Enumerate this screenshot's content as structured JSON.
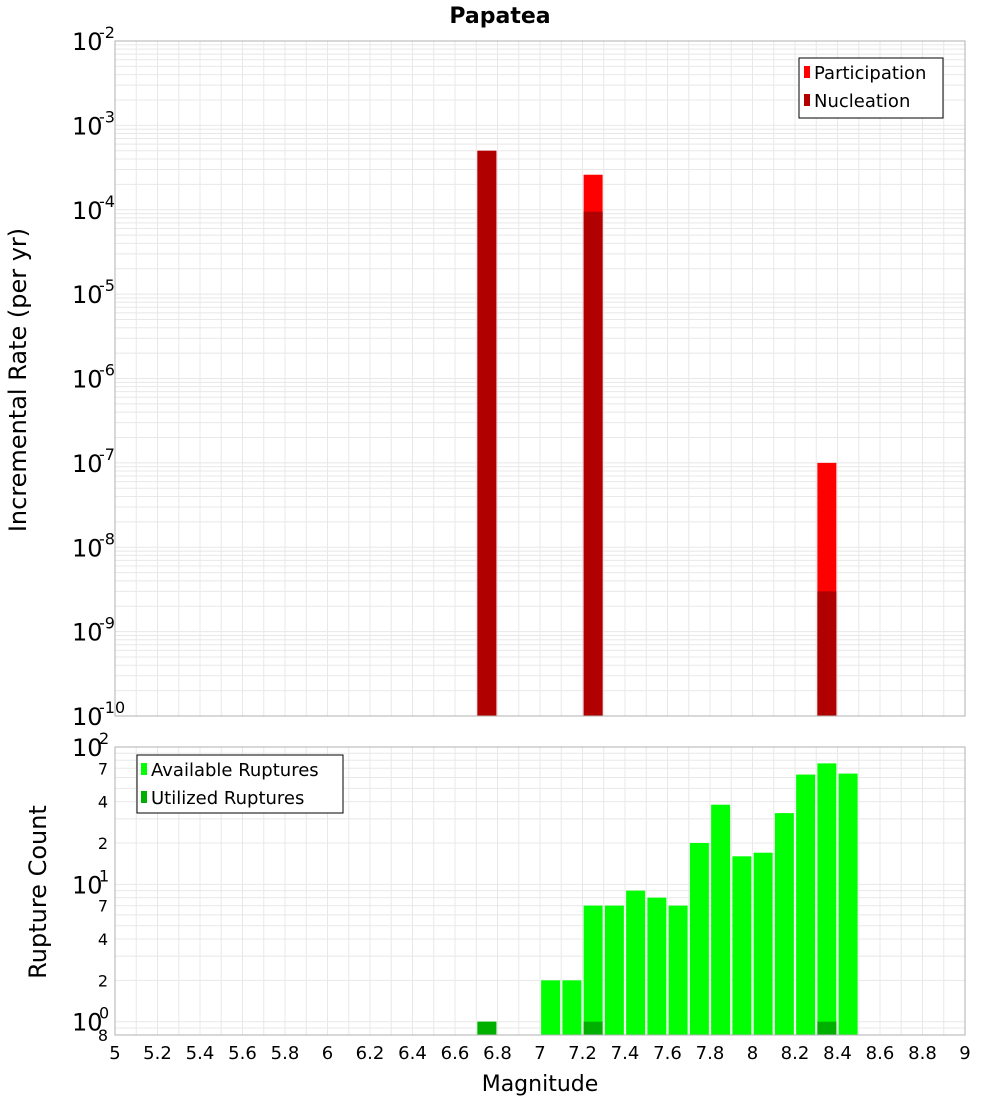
{
  "colors": {
    "participation": "#ff0000",
    "nucleation": "#b00000",
    "available": "#00ff00",
    "utilized": "#00b000",
    "grid": "#e8e8e8",
    "frame": "#b0b0b0"
  },
  "chart_data": [
    {
      "type": "bar",
      "title": "Papatea",
      "xlabel": "",
      "ylabel": "Incremental Rate (per yr)",
      "yscale": "log",
      "ylim": [
        1e-10,
        0.01
      ],
      "xlim": [
        5,
        9
      ],
      "grid": true,
      "legend_position": "top-right",
      "series": [
        {
          "name": "Participation",
          "color": "#ff0000",
          "x": [
            6.75,
            7.25,
            8.35
          ],
          "values": [
            0.0005,
            0.00026,
            1e-07
          ]
        },
        {
          "name": "Nucleation",
          "color": "#b00000",
          "x": [
            6.75,
            7.25,
            8.35
          ],
          "values": [
            0.0005,
            9.5e-05,
            3e-09
          ]
        }
      ],
      "y_major_ticks": [
        {
          "base": "10",
          "exp": "-10"
        },
        {
          "base": "10",
          "exp": "-9"
        },
        {
          "base": "10",
          "exp": "-8"
        },
        {
          "base": "10",
          "exp": "-7"
        },
        {
          "base": "10",
          "exp": "-6"
        },
        {
          "base": "10",
          "exp": "-5"
        },
        {
          "base": "10",
          "exp": "-4"
        },
        {
          "base": "10",
          "exp": "-3"
        },
        {
          "base": "10",
          "exp": "-2"
        }
      ]
    },
    {
      "type": "bar",
      "xlabel": "Magnitude",
      "ylabel": "Rupture Count",
      "yscale": "log",
      "ylim": [
        0.8,
        100
      ],
      "xlim": [
        5,
        9
      ],
      "grid": true,
      "legend_position": "top-left",
      "series": [
        {
          "name": "Available Ruptures",
          "color": "#00ff00",
          "x": [
            6.75,
            7.05,
            7.15,
            7.25,
            7.35,
            7.45,
            7.55,
            7.65,
            7.75,
            7.85,
            7.95,
            8.05,
            8.15,
            8.25,
            8.35,
            8.45
          ],
          "values": [
            1,
            2,
            2,
            7,
            7,
            9,
            8,
            7,
            20,
            38,
            16,
            17,
            33,
            63,
            76,
            64
          ]
        },
        {
          "name": "Utilized Ruptures",
          "color": "#00b000",
          "x": [
            6.75,
            7.25,
            8.35
          ],
          "values": [
            1,
            1,
            1
          ]
        }
      ],
      "y_major_ticks": [
        {
          "base": "10",
          "exp": "0"
        },
        {
          "base": "10",
          "exp": "1"
        },
        {
          "base": "10",
          "exp": "2"
        }
      ],
      "y_minor_labels": [
        "8",
        "2",
        "4",
        "7",
        "2",
        "4",
        "7"
      ],
      "y_minor_values": [
        0.8,
        2,
        4,
        7,
        20,
        40,
        70
      ]
    }
  ],
  "x_ticks": [
    "5",
    "5.2",
    "5.4",
    "5.6",
    "5.8",
    "6",
    "6.2",
    "6.4",
    "6.6",
    "6.8",
    "7",
    "7.2",
    "7.4",
    "7.6",
    "7.8",
    "8",
    "8.2",
    "8.4",
    "8.6",
    "8.8",
    "9"
  ]
}
